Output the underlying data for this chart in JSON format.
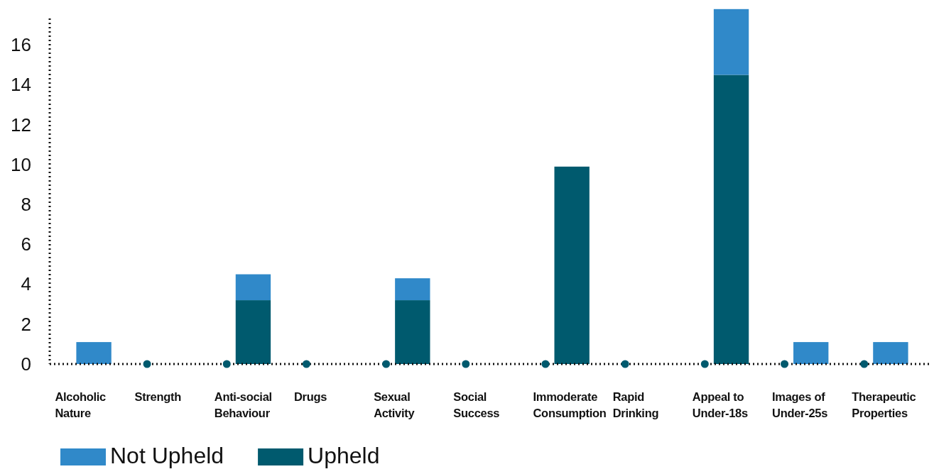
{
  "chart_data": {
    "type": "bar",
    "stacked": true,
    "categories": [
      "Alcoholic Nature",
      "Strength",
      "Anti-social Behaviour",
      "Drugs",
      "Sexual Activity",
      "Social Success",
      "Immoderate Consumption",
      "Rapid Drinking",
      "Appeal to Under-18s",
      "Images of Under-25s",
      "Therapeutic Properties"
    ],
    "series": [
      {
        "name": "Upheld",
        "color": "#005a6e",
        "values": [
          0,
          0,
          3.2,
          0,
          3.2,
          0,
          9.9,
          0,
          14.5,
          0,
          0
        ]
      },
      {
        "name": "Not Upheld",
        "color": "#3089c9",
        "values": [
          1.1,
          0,
          1.3,
          0,
          1.1,
          0,
          0,
          0,
          3.3,
          1.1,
          1.1
        ]
      }
    ],
    "ylim": [
      0,
      17.9
    ],
    "yticks": [
      0,
      2,
      4,
      6,
      8,
      10,
      12,
      14,
      16
    ],
    "grid": false,
    "legend": "bottom left"
  }
}
